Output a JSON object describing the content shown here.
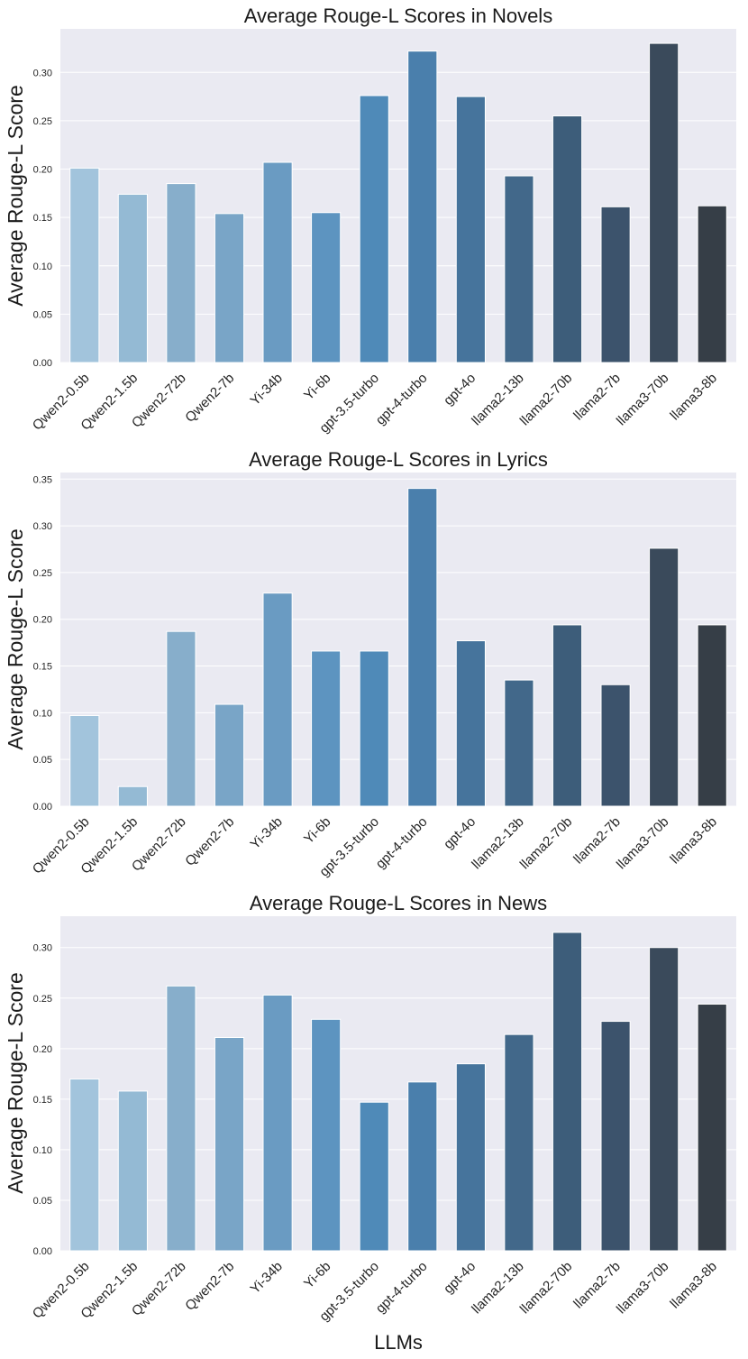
{
  "figure": {
    "xlabel": "LLMs"
  },
  "chart_data": [
    {
      "type": "bar",
      "title": "Average Rouge-L Scores in Novels",
      "xlabel": "",
      "ylabel": "Average Rouge-L Score",
      "ylim": [
        0,
        0.345
      ],
      "yticks": [
        0.0,
        0.05,
        0.1,
        0.15,
        0.2,
        0.25,
        0.3
      ],
      "ytick_labels": [
        "0.00",
        "0.05",
        "0.10",
        "0.15",
        "0.20",
        "0.25",
        "0.30"
      ],
      "grid": true,
      "categories": [
        "Qwen2-0.5b",
        "Qwen2-1.5b",
        "Qwen2-72b",
        "Qwen2-7b",
        "Yi-34b",
        "Yi-6b",
        "gpt-3.5-turbo",
        "gpt-4-turbo",
        "gpt-4o",
        "llama2-13b",
        "llama2-70b",
        "llama2-7b",
        "llama3-70b",
        "llama3-8b"
      ],
      "values": [
        0.201,
        0.174,
        0.185,
        0.154,
        0.207,
        0.155,
        0.276,
        0.322,
        0.275,
        0.193,
        0.255,
        0.161,
        0.33,
        0.162
      ]
    },
    {
      "type": "bar",
      "title": "Average Rouge-L Scores in Lyrics",
      "xlabel": "",
      "ylabel": "Average Rouge-L Score",
      "ylim": [
        0,
        0.357
      ],
      "yticks": [
        0.0,
        0.05,
        0.1,
        0.15,
        0.2,
        0.25,
        0.3,
        0.35
      ],
      "ytick_labels": [
        "0.00",
        "0.05",
        "0.10",
        "0.15",
        "0.20",
        "0.25",
        "0.30",
        "0.35"
      ],
      "grid": true,
      "categories": [
        "Qwen2-0.5b",
        "Qwen2-1.5b",
        "Qwen2-72b",
        "Qwen2-7b",
        "Yi-34b",
        "Yi-6b",
        "gpt-3.5-turbo",
        "gpt-4-turbo",
        "gpt-4o",
        "llama2-13b",
        "llama2-70b",
        "llama2-7b",
        "llama3-70b",
        "llama3-8b"
      ],
      "values": [
        0.097,
        0.021,
        0.187,
        0.109,
        0.228,
        0.166,
        0.166,
        0.34,
        0.177,
        0.135,
        0.194,
        0.13,
        0.276,
        0.194
      ]
    },
    {
      "type": "bar",
      "title": "Average Rouge-L Scores in News",
      "xlabel": "LLMs",
      "ylabel": "Average Rouge-L Score",
      "ylim": [
        0,
        0.331
      ],
      "yticks": [
        0.0,
        0.05,
        0.1,
        0.15,
        0.2,
        0.25,
        0.3
      ],
      "ytick_labels": [
        "0.00",
        "0.05",
        "0.10",
        "0.15",
        "0.20",
        "0.25",
        "0.30"
      ],
      "grid": true,
      "categories": [
        "Qwen2-0.5b",
        "Qwen2-1.5b",
        "Qwen2-72b",
        "Qwen2-7b",
        "Yi-34b",
        "Yi-6b",
        "gpt-3.5-turbo",
        "gpt-4-turbo",
        "gpt-4o",
        "llama2-13b",
        "llama2-70b",
        "llama2-7b",
        "llama3-70b",
        "llama3-8b"
      ],
      "values": [
        0.17,
        0.158,
        0.262,
        0.211,
        0.253,
        0.229,
        0.147,
        0.167,
        0.185,
        0.214,
        0.315,
        0.227,
        0.3,
        0.244
      ]
    }
  ],
  "palette": [
    "#a2c4dc",
    "#94bad4",
    "#87aecb",
    "#79a5c7",
    "#6a9bc2",
    "#5d94c0",
    "#4f8ab8",
    "#4a7fac",
    "#46749c",
    "#42688a",
    "#3d5d7a",
    "#3c536c",
    "#3a4a5b",
    "#363e47"
  ],
  "colors": {
    "plot_bg": "#eaeaf2",
    "grid": "#ffffff",
    "text": "#262626"
  }
}
